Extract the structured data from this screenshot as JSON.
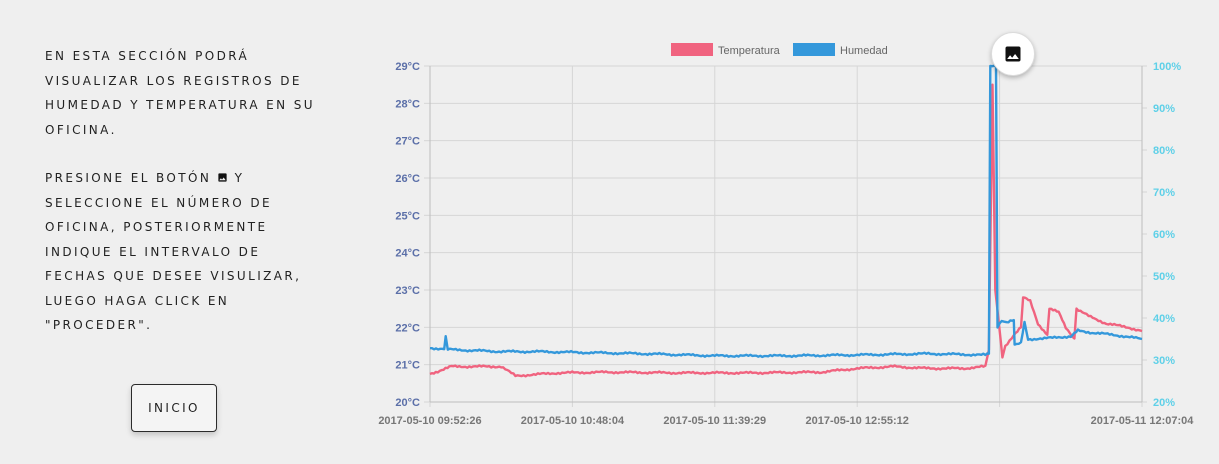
{
  "instructions": {
    "paragraph1": "En esta sección podrá visualizar los registros de humedad y temperatura en su oficina.",
    "paragraph2_before": "Presione el botón",
    "paragraph2_after": "y seleccione el número de oficina, posteriormente indique el intervalo de fechas que desee visulizar, luego haga click en \"proceder\"."
  },
  "buttons": {
    "inicio_label": "INICIO",
    "image_icon": "image-icon"
  },
  "colors": {
    "temperatura": "#f0637f",
    "humedad": "#3498db",
    "left_axis": "#5b6fa8",
    "right_axis": "#5ed0e8",
    "grid": "#d6d6d6"
  },
  "chart_data": {
    "type": "line",
    "legend_position": "top",
    "grid": true,
    "x_tick_labels": [
      "2017-05-10 09:52:26",
      "2017-05-10 10:48:04",
      "2017-05-10 11:39:29",
      "2017-05-10 12:55:12",
      "2017-05-11 12:07:04"
    ],
    "y_left": {
      "ticks": [
        "20°C",
        "21°C",
        "22°C",
        "23°C",
        "24°C",
        "25°C",
        "26°C",
        "27°C",
        "28°C",
        "29°C"
      ],
      "range": [
        20,
        29
      ],
      "unit": "°C"
    },
    "y_right": {
      "ticks": [
        "20%",
        "30%",
        "40%",
        "50%",
        "60%",
        "70%",
        "80%",
        "90%",
        "100%"
      ],
      "range": [
        20,
        100
      ],
      "unit": "%"
    },
    "x_range": [
      0,
      100
    ],
    "series": [
      {
        "name": "Temperatura",
        "axis": "left",
        "points": [
          [
            0,
            20.75
          ],
          [
            3,
            20.95
          ],
          [
            10,
            20.95
          ],
          [
            12,
            20.7
          ],
          [
            18,
            20.78
          ],
          [
            25,
            20.8
          ],
          [
            35,
            20.78
          ],
          [
            45,
            20.78
          ],
          [
            55,
            20.8
          ],
          [
            60,
            20.9
          ],
          [
            65,
            20.95
          ],
          [
            70,
            20.9
          ],
          [
            75,
            20.9
          ],
          [
            78,
            20.95
          ],
          [
            78.5,
            21.4
          ],
          [
            79.0,
            28.5
          ],
          [
            79.4,
            23.0
          ],
          [
            80.4,
            21.2
          ],
          [
            80.8,
            21.5
          ],
          [
            82,
            21.8
          ],
          [
            83,
            22.0
          ],
          [
            83.3,
            22.8
          ],
          [
            84.3,
            22.7
          ],
          [
            85.4,
            22.1
          ],
          [
            86.7,
            21.8
          ],
          [
            87.0,
            22.5
          ],
          [
            88.3,
            22.4
          ],
          [
            89.3,
            22.0
          ],
          [
            90.5,
            21.7
          ],
          [
            90.8,
            22.5
          ],
          [
            92.5,
            22.3
          ],
          [
            95,
            22.1
          ],
          [
            98,
            22.0
          ],
          [
            100,
            21.9
          ]
        ]
      },
      {
        "name": "Humedad",
        "axis": "right",
        "points": [
          [
            0,
            32.8
          ],
          [
            2,
            32.7
          ],
          [
            2.2,
            35.5
          ],
          [
            2.5,
            32.5
          ],
          [
            10,
            32.0
          ],
          [
            15,
            32.0
          ],
          [
            30,
            31.5
          ],
          [
            40,
            31.0
          ],
          [
            50,
            31.0
          ],
          [
            60,
            31.2
          ],
          [
            70,
            31.5
          ],
          [
            78,
            31.2
          ],
          [
            78.5,
            31.5
          ],
          [
            78.7,
            100
          ],
          [
            79.5,
            100
          ],
          [
            79.7,
            38.0
          ],
          [
            80.3,
            39.5
          ],
          [
            81,
            39.0
          ],
          [
            82,
            39.5
          ],
          [
            82.1,
            33.5
          ],
          [
            83,
            34.0
          ],
          [
            83.5,
            39.0
          ],
          [
            84,
            35.0
          ],
          [
            86,
            35.0
          ],
          [
            88,
            35.5
          ],
          [
            90,
            35.5
          ],
          [
            91,
            37.0
          ],
          [
            93,
            36.5
          ],
          [
            96,
            36.0
          ],
          [
            100,
            35.0
          ]
        ]
      }
    ]
  }
}
